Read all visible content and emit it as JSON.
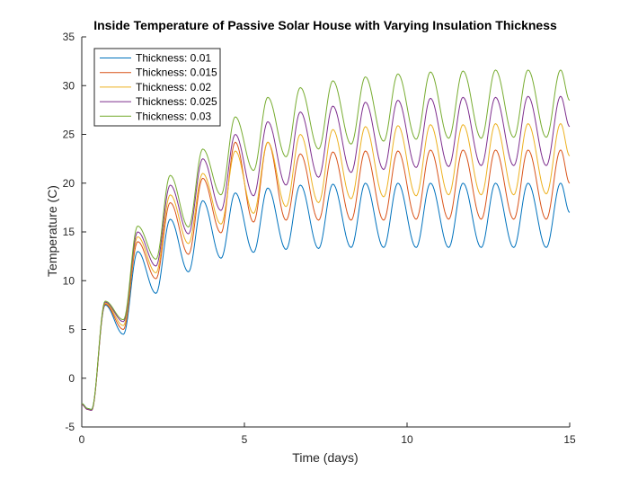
{
  "chart_data": {
    "type": "line",
    "title": "Inside Temperature of Passive Solar House with Varying Insulation Thickness",
    "xlabel": "Time (days)",
    "ylabel": "Temperature (C)",
    "xlim": [
      0,
      15
    ],
    "ylim": [
      -5,
      35
    ],
    "xticks": [
      0,
      5,
      10,
      15
    ],
    "yticks": [
      -5,
      0,
      5,
      10,
      15,
      20,
      25,
      30,
      35
    ],
    "grid": false,
    "legend_position": "top-left",
    "daily_peak_time": 0.72,
    "series": [
      {
        "name": "Thickness: 0.01",
        "color": "#0072BD",
        "start": -2.6,
        "peaks": [
          7.5,
          13.0,
          16.3,
          18.2,
          19.0,
          19.5,
          19.8,
          19.9,
          20.0,
          20.0,
          20.0,
          20.0,
          20.0,
          20.0,
          20.0
        ],
        "troughs": [
          4.5,
          8.7,
          10.9,
          12.3,
          12.9,
          13.2,
          13.3,
          13.4,
          13.4,
          13.4,
          13.4,
          13.4,
          13.4,
          13.4
        ],
        "end": 17.0
      },
      {
        "name": "Thickness: 0.015",
        "color": "#D95319",
        "start": -2.7,
        "peaks": [
          7.6,
          14.0,
          18.0,
          20.5,
          24.2,
          24.2,
          23.0,
          23.2,
          23.3,
          23.3,
          23.4,
          23.4,
          23.4,
          23.4,
          23.4
        ],
        "troughs": [
          5.0,
          10.2,
          12.7,
          14.9,
          16.0,
          16.2,
          16.2,
          16.2,
          16.2,
          16.3,
          16.3,
          16.3,
          16.3,
          16.3
        ],
        "end": 20.0
      },
      {
        "name": "Thickness: 0.02",
        "color": "#EDB120",
        "start": -2.7,
        "peaks": [
          7.7,
          14.5,
          18.8,
          21.0,
          23.3,
          24.2,
          25.0,
          25.5,
          25.8,
          25.9,
          26.0,
          26.0,
          26.1,
          26.1,
          26.1
        ],
        "troughs": [
          5.4,
          10.8,
          13.8,
          15.8,
          16.9,
          17.6,
          18.0,
          18.4,
          18.6,
          18.7,
          18.8,
          18.8,
          18.8,
          18.9
        ],
        "end": 22.8
      },
      {
        "name": "Thickness: 0.025",
        "color": "#7E2F8E",
        "start": -2.7,
        "peaks": [
          7.8,
          15.0,
          19.8,
          22.5,
          25.0,
          26.3,
          27.3,
          27.9,
          28.3,
          28.5,
          28.7,
          28.8,
          28.8,
          28.9,
          28.9
        ],
        "troughs": [
          5.8,
          11.5,
          14.8,
          17.2,
          18.7,
          19.8,
          20.6,
          21.1,
          21.4,
          21.6,
          21.7,
          21.8,
          21.8,
          21.8
        ],
        "end": 25.8
      },
      {
        "name": "Thickness: 0.03",
        "color": "#77AC30",
        "start": -2.6,
        "peaks": [
          7.9,
          15.6,
          20.8,
          23.5,
          26.8,
          28.8,
          29.8,
          30.5,
          30.9,
          31.2,
          31.4,
          31.5,
          31.6,
          31.6,
          31.6
        ],
        "troughs": [
          6.0,
          12.2,
          15.5,
          18.8,
          21.3,
          22.7,
          23.5,
          24.0,
          24.3,
          24.5,
          24.6,
          24.6,
          24.7,
          24.7
        ],
        "end": 28.5
      }
    ]
  }
}
